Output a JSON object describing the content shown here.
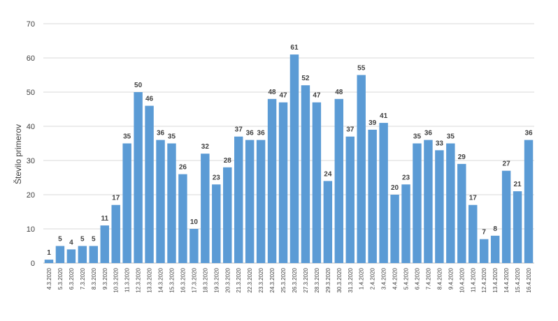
{
  "chart_data": {
    "type": "bar",
    "title": "",
    "xlabel": "",
    "ylabel": "Število primerov",
    "ylim": [
      0,
      70
    ],
    "yticks": [
      0,
      10,
      20,
      30,
      40,
      50,
      60,
      70
    ],
    "grid": true,
    "legend": "none",
    "bar_color": "#5B9BD5",
    "categories": [
      "4.3.2020",
      "5.3.2020",
      "6.3.2020",
      "7.3.2020",
      "8.3.2020",
      "9.3.2020",
      "10.3.2020",
      "11.3.2020",
      "12.3.2020",
      "13.3.2020",
      "14.3.2020",
      "15.3.2020",
      "16.3.2020",
      "17.3.2020",
      "18.3.2020",
      "19.3.2020",
      "20.3.2020",
      "21.3.2020",
      "22.3.2020",
      "23.3.2020",
      "24.3.2020",
      "25.3.2020",
      "26.3.2020",
      "27.3.2020",
      "28.3.2020",
      "29.3.2020",
      "30.3.2020",
      "31.3.2020",
      "1.4.2020",
      "2.4.2020",
      "3.4.2020",
      "4.4.2020",
      "5.4.2020",
      "6.4.2020",
      "7.4.2020",
      "8.4.2020",
      "9.4.2020",
      "10.4.2020",
      "11.4.2020",
      "12.4.2020",
      "13.4.2020",
      "14.4.2020",
      "15.4.2020",
      "16.4.2020"
    ],
    "values": [
      1,
      5,
      4,
      5,
      5,
      11,
      17,
      35,
      50,
      46,
      36,
      35,
      26,
      10,
      32,
      23,
      28,
      37,
      36,
      36,
      48,
      47,
      61,
      52,
      47,
      24,
      48,
      37,
      55,
      39,
      41,
      20,
      23,
      35,
      36,
      33,
      35,
      29,
      17,
      7,
      8,
      27,
      21,
      36
    ]
  }
}
